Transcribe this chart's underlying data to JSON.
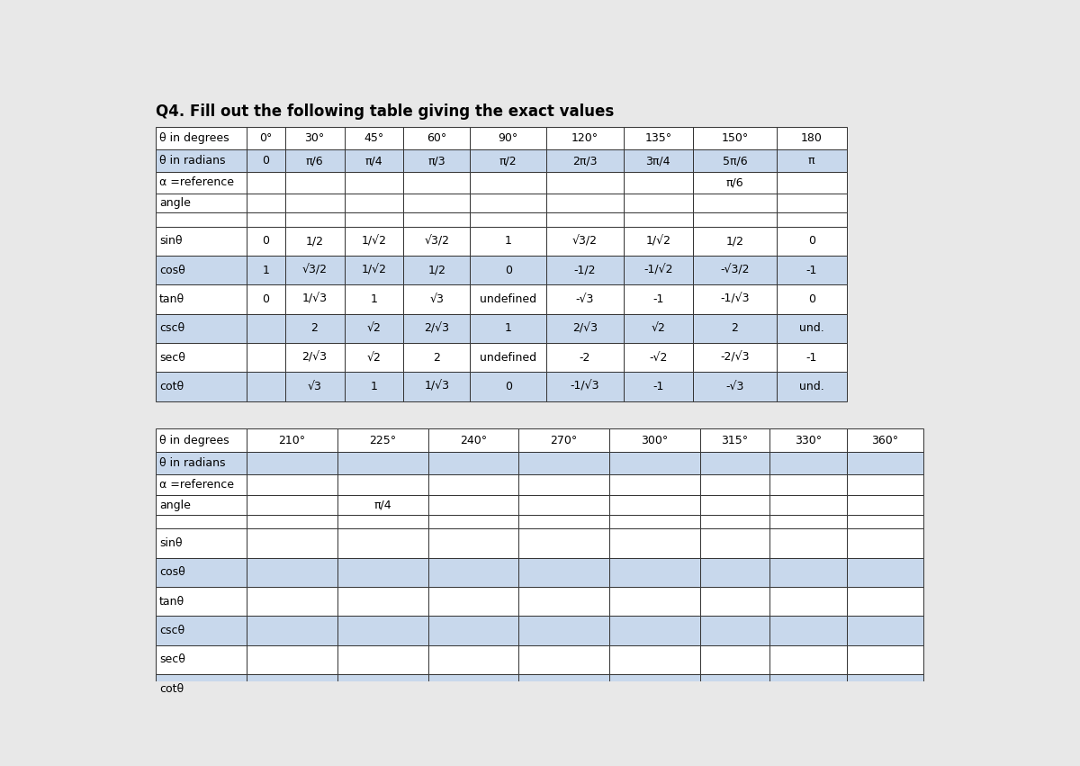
{
  "title": "Q4. Fill out the following table giving the exact values",
  "title_fontsize": 12,
  "bg_color": "#e8e8e8",
  "table_bg": "#ffffff",
  "cell_alt_bg": "#c8d8ec",
  "border_color": "#333333",
  "text_color": "#000000",
  "fontsize": 9.0,
  "table1_col_labels": [
    "θ in degrees",
    "0°",
    "30°",
    "45°",
    "60°",
    "90°",
    "120°",
    "135°",
    "150°",
    "180"
  ],
  "table1_rows": [
    [
      "θ in degrees",
      "0°",
      "30°",
      "45°",
      "60°",
      "90°",
      "120°",
      "135°",
      "150°",
      "180"
    ],
    [
      "θ in radians",
      "0",
      "π/6",
      "π/4",
      "π/3",
      "π/2",
      "2π/3",
      "3π/4",
      "5π/6",
      "π"
    ],
    [
      "α =reference",
      "",
      "",
      "",
      "",
      "",
      "",
      "",
      "π/6",
      ""
    ],
    [
      "angle",
      "",
      "",
      "",
      "",
      "",
      "",
      "",
      "",
      ""
    ],
    [
      "",
      "",
      "",
      "",
      "",
      "",
      "",
      "",
      "",
      ""
    ],
    [
      "sinθ",
      "0",
      "1/2",
      "1/√2",
      "√3/2",
      "1",
      "√3/2",
      "1/√2",
      "1/2",
      "0"
    ],
    [
      "cosθ",
      "1",
      "√3/2",
      "1/√2",
      "1/2",
      "0",
      "-1/2",
      "-1/√2",
      "-√3/2",
      "-1"
    ],
    [
      "tanθ",
      "0",
      "1/√3",
      "1",
      "√3",
      "undefined",
      "-√3",
      "-1",
      "-1/√3",
      "0"
    ],
    [
      "cscθ",
      "",
      "2",
      "√2",
      "2/√3",
      "1",
      "2/√3",
      "√2",
      "2",
      "und."
    ],
    [
      "secθ",
      "",
      "2/√3",
      "√2",
      "2",
      "undefined",
      "-2",
      "-√2",
      "-2/√3",
      "-1"
    ],
    [
      "cotθ",
      "",
      "√3",
      "1",
      "1/√3",
      "0",
      "-1/√3",
      "-1",
      "-√3",
      "und."
    ]
  ],
  "table2_rows": [
    [
      "θ in degrees",
      "210°",
      "225°",
      "240°",
      "270°",
      "300°",
      "315°",
      "330°",
      "360°"
    ],
    [
      "θ in radians",
      "",
      "",
      "",
      "",
      "",
      "",
      "",
      ""
    ],
    [
      "α =reference",
      "",
      "",
      "",
      "",
      "",
      "",
      "",
      ""
    ],
    [
      "angle",
      "",
      "π/4",
      "",
      "",
      "",
      "",
      "",
      ""
    ],
    [
      "",
      "",
      "",
      "",
      "",
      "",
      "",
      "",
      ""
    ],
    [
      "sinθ",
      "",
      "",
      "",
      "",
      "",
      "",
      "",
      ""
    ],
    [
      "cosθ",
      "",
      "",
      "",
      "",
      "",
      "",
      "",
      ""
    ],
    [
      "tanθ",
      "",
      "",
      "",
      "",
      "",
      "",
      "",
      ""
    ],
    [
      "cscθ",
      "",
      "",
      "",
      "",
      "",
      "",
      "",
      ""
    ],
    [
      "secθ",
      "",
      "",
      "",
      "",
      "",
      "",
      "",
      ""
    ],
    [
      "cotθ",
      "",
      "",
      "",
      "",
      "",
      "",
      "",
      ""
    ]
  ]
}
